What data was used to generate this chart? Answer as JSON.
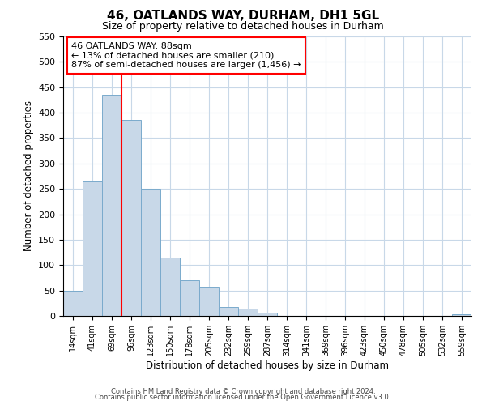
{
  "title": "46, OATLANDS WAY, DURHAM, DH1 5GL",
  "subtitle": "Size of property relative to detached houses in Durham",
  "xlabel": "Distribution of detached houses by size in Durham",
  "ylabel": "Number of detached properties",
  "bar_labels": [
    "14sqm",
    "41sqm",
    "69sqm",
    "96sqm",
    "123sqm",
    "150sqm",
    "178sqm",
    "205sqm",
    "232sqm",
    "259sqm",
    "287sqm",
    "314sqm",
    "341sqm",
    "369sqm",
    "396sqm",
    "423sqm",
    "450sqm",
    "478sqm",
    "505sqm",
    "532sqm",
    "559sqm"
  ],
  "bar_values": [
    50,
    265,
    435,
    385,
    250,
    115,
    70,
    58,
    17,
    15,
    6,
    0,
    0,
    0,
    0,
    0,
    0,
    0,
    0,
    0,
    3
  ],
  "bar_color": "#c8d8e8",
  "bar_edgecolor": "#7aaacc",
  "property_line_x": 3,
  "property_line_color": "red",
  "annotation_text": "46 OATLANDS WAY: 88sqm\n← 13% of detached houses are smaller (210)\n87% of semi-detached houses are larger (1,456) →",
  "ylim": [
    0,
    550
  ],
  "yticks": [
    0,
    50,
    100,
    150,
    200,
    250,
    300,
    350,
    400,
    450,
    500,
    550
  ],
  "footer_line1": "Contains HM Land Registry data © Crown copyright and database right 2024.",
  "footer_line2": "Contains public sector information licensed under the Open Government Licence v3.0.",
  "background_color": "#ffffff",
  "grid_color": "#c8d8e8"
}
